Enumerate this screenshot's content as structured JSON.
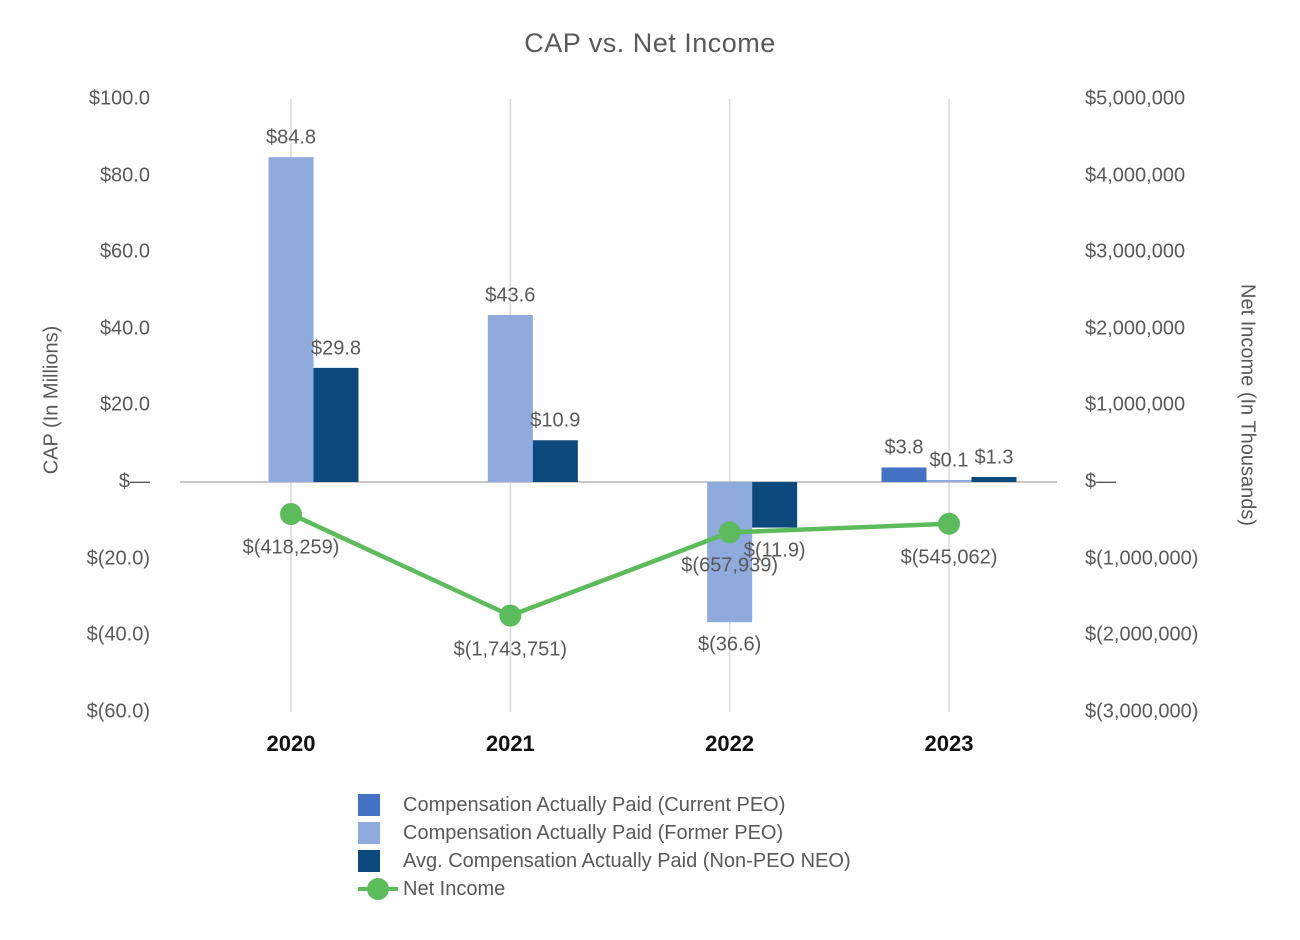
{
  "title": "CAP vs. Net Income",
  "chart_data": {
    "type": "combo-bar-line",
    "categories": [
      "2020",
      "2021",
      "2022",
      "2023"
    ],
    "left_axis": {
      "title": "CAP (In Millions)",
      "min": -60,
      "max": 100,
      "ticks": [
        {
          "value": 100,
          "label": "$100.0"
        },
        {
          "value": 80,
          "label": "$80.0"
        },
        {
          "value": 60,
          "label": "$60.0"
        },
        {
          "value": 40,
          "label": "$40.0"
        },
        {
          "value": 20,
          "label": "$20.0"
        },
        {
          "value": 0,
          "label": "$—"
        },
        {
          "value": -20,
          "label": "$(20.0)"
        },
        {
          "value": -40,
          "label": "$(40.0)"
        },
        {
          "value": -60,
          "label": "$(60.0)"
        }
      ]
    },
    "right_axis": {
      "title": "Net Income (In Thousands)",
      "min": -3000000,
      "max": 5000000,
      "ticks": [
        {
          "value": 5000000,
          "label": "$5,000,000"
        },
        {
          "value": 4000000,
          "label": "$4,000,000"
        },
        {
          "value": 3000000,
          "label": "$3,000,000"
        },
        {
          "value": 2000000,
          "label": "$2,000,000"
        },
        {
          "value": 1000000,
          "label": "$1,000,000"
        },
        {
          "value": 0,
          "label": "$—"
        },
        {
          "value": -1000000,
          "label": "$(1,000,000)"
        },
        {
          "value": -2000000,
          "label": "$(2,000,000)"
        },
        {
          "value": -3000000,
          "label": "$(3,000,000)"
        }
      ]
    },
    "series": [
      {
        "name": "Compensation Actually Paid (Current PEO)",
        "type": "bar",
        "axis": "left",
        "color": "#4472C4",
        "values": [
          null,
          null,
          null,
          3.8
        ],
        "labels": [
          "",
          "",
          "",
          "$3.8"
        ]
      },
      {
        "name": "Compensation Actually Paid (Former PEO)",
        "type": "bar",
        "axis": "left",
        "color": "#8FAADC",
        "values": [
          84.8,
          43.6,
          -36.6,
          0.1
        ],
        "labels": [
          "$84.8",
          "$43.6",
          "$(36.6)",
          "$0.1"
        ]
      },
      {
        "name": "Avg. Compensation Actually Paid (Non-PEO NEO)",
        "type": "bar",
        "axis": "left",
        "color": "#0C4A7D",
        "values": [
          29.8,
          10.9,
          -11.9,
          1.3
        ],
        "labels": [
          "$29.8",
          "$10.9",
          "$(11.9)",
          "$1.3"
        ]
      },
      {
        "name": "Net Income",
        "type": "line",
        "axis": "right",
        "color": "#5CBC5C",
        "values": [
          -418259,
          -1743751,
          -657939,
          -545062
        ],
        "labels": [
          "$(418,259)",
          "$(1,743,751)",
          "$(657,939)",
          "$(545,062)"
        ]
      }
    ],
    "grid": "vertical-category-lines",
    "legend_position": "bottom-left",
    "colors": {
      "text_gray": "#595959",
      "gridline": "#D9D9D9",
      "zero_line": "#C9C9C9"
    }
  }
}
